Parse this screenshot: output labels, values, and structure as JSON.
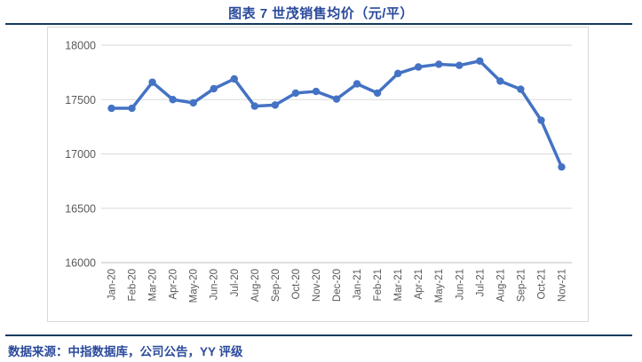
{
  "header": {
    "title": "图表 7  世茂销售均价（元/平）"
  },
  "footer": {
    "source": "数据来源：中指数据库，公司公告，YY 评级"
  },
  "colors": {
    "series_line": "#4472C4",
    "title_text": "#2B4A9B",
    "divider_navy": "#123A5F",
    "gridline": "#D9D9D9",
    "axis_line": "#BFBFBF",
    "tick_text": "#595959"
  },
  "chart_data": {
    "type": "line",
    "title": "图表 7  世茂销售均价（元/平）",
    "categories": [
      "Jan-20",
      "Feb-20",
      "Mar-20",
      "Apr-20",
      "May-20",
      "Jun-20",
      "Jul-20",
      "Aug-20",
      "Sep-20",
      "Oct-20",
      "Nov-20",
      "Dec-20",
      "Jan-21",
      "Feb-21",
      "Mar-21",
      "Apr-21",
      "May-21",
      "Jun-21",
      "Jul-21",
      "Aug-21",
      "Sep-21",
      "Oct-21",
      "Nov-21"
    ],
    "series": [
      {
        "name": "世茂销售均价",
        "values": [
          17420,
          17420,
          17660,
          17500,
          17470,
          17600,
          17690,
          17440,
          17450,
          17560,
          17575,
          17505,
          17645,
          17560,
          17740,
          17800,
          17825,
          17815,
          17855,
          17670,
          17595,
          17310,
          16880
        ]
      }
    ],
    "xlabel": "",
    "ylabel": "",
    "ylim": [
      16000,
      18000
    ],
    "ytick_step": 500,
    "grid": "horizontal",
    "legend_position": "none",
    "marker": "circle"
  }
}
